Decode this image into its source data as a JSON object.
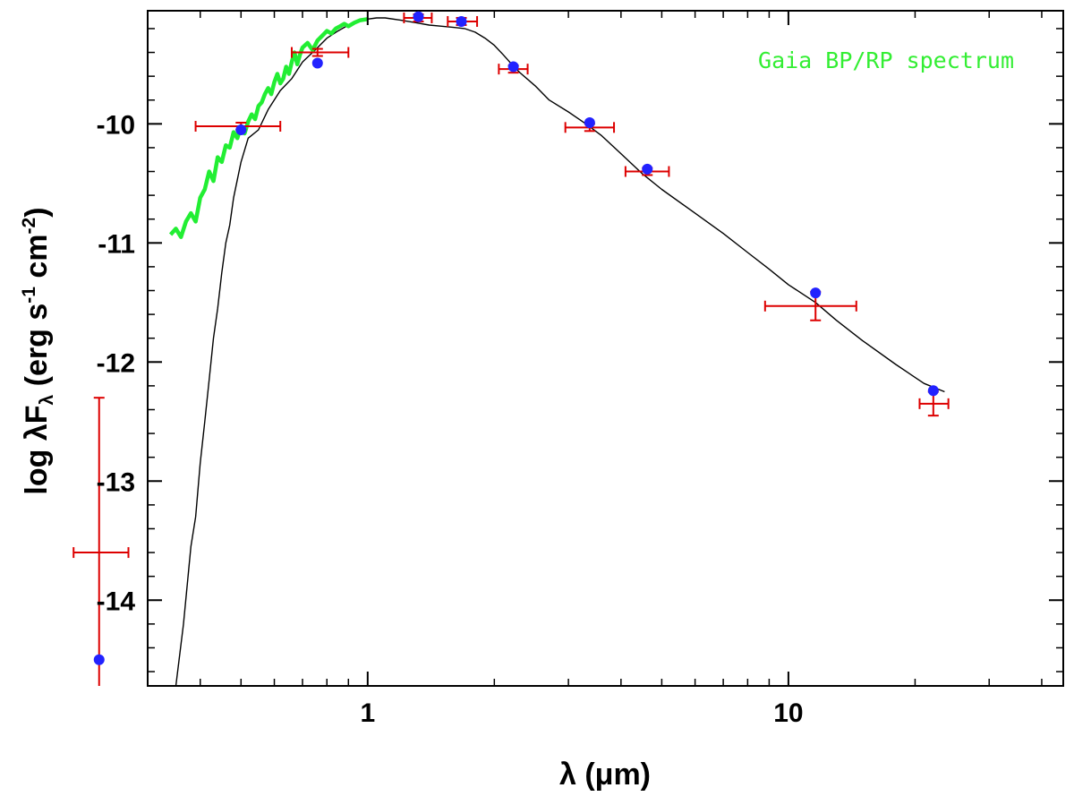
{
  "chart_data": {
    "type": "scatter",
    "title": "",
    "xlabel": "λ (μm)",
    "ylabel": "log λF",
    "ylabel_sub": "λ",
    "ylabel_units_open": " (erg s",
    "ylabel_units_exp1": "-1",
    "ylabel_units_mid": " cm",
    "ylabel_units_exp2": "-2",
    "ylabel_units_close": ")",
    "x_scale": "log",
    "xlim": [
      0.3,
      45
    ],
    "ylim": [
      -14.72,
      -9.05
    ],
    "x_ticks": [
      {
        "value": 1,
        "label": "1"
      },
      {
        "value": 10,
        "label": "10"
      }
    ],
    "y_ticks": [
      {
        "value": -10,
        "label": "-10"
      },
      {
        "value": -11,
        "label": "-11"
      },
      {
        "value": -12,
        "label": "-12"
      },
      {
        "value": -13,
        "label": "-13"
      },
      {
        "value": -14,
        "label": "-14"
      }
    ],
    "grid": false,
    "annotation": {
      "text": "Gaia BP/RP spectrum",
      "color": "#33ee33"
    },
    "model_sed": {
      "color": "#000000",
      "x": [
        0.35,
        0.365,
        0.38,
        0.39,
        0.4,
        0.41,
        0.42,
        0.43,
        0.44,
        0.45,
        0.46,
        0.47,
        0.48,
        0.5,
        0.52,
        0.55,
        0.58,
        0.62,
        0.66,
        0.7,
        0.75,
        0.8,
        0.85,
        0.9,
        0.95,
        1.0,
        1.05,
        1.1,
        1.2,
        1.3,
        1.4,
        1.5,
        1.6,
        1.7,
        1.8,
        1.9,
        2.0,
        2.1,
        2.2,
        2.3,
        2.5,
        2.7,
        3.0,
        3.3,
        3.6,
        4.0,
        4.5,
        5.0,
        6.0,
        7.0,
        8.0,
        9.0,
        10.0,
        11.6,
        13.0,
        15.0,
        18.0,
        21.0,
        23.5
      ],
      "y": [
        -14.72,
        -14.2,
        -13.55,
        -13.3,
        -12.85,
        -12.5,
        -12.15,
        -11.8,
        -11.55,
        -11.25,
        -11.0,
        -10.85,
        -10.62,
        -10.32,
        -10.12,
        -10.05,
        -9.88,
        -9.72,
        -9.62,
        -9.48,
        -9.38,
        -9.28,
        -9.22,
        -9.17,
        -9.14,
        -9.12,
        -9.11,
        -9.11,
        -9.13,
        -9.15,
        -9.17,
        -9.18,
        -9.19,
        -9.2,
        -9.23,
        -9.28,
        -9.34,
        -9.42,
        -9.5,
        -9.57,
        -9.68,
        -9.8,
        -9.9,
        -10.0,
        -10.1,
        -10.25,
        -10.42,
        -10.55,
        -10.75,
        -10.92,
        -11.08,
        -11.22,
        -11.35,
        -11.5,
        -11.65,
        -11.82,
        -12.02,
        -12.18,
        -12.25
      ]
    },
    "gaia_spectrum": {
      "name": "Gaia BP/RP spectrum",
      "color": "#22ee33",
      "x": [
        0.34,
        0.35,
        0.36,
        0.37,
        0.38,
        0.39,
        0.4,
        0.41,
        0.42,
        0.43,
        0.44,
        0.45,
        0.46,
        0.47,
        0.48,
        0.49,
        0.5,
        0.51,
        0.52,
        0.53,
        0.54,
        0.55,
        0.56,
        0.57,
        0.58,
        0.59,
        0.6,
        0.61,
        0.62,
        0.63,
        0.64,
        0.65,
        0.66,
        0.67,
        0.68,
        0.69,
        0.7,
        0.72,
        0.74,
        0.76,
        0.78,
        0.8,
        0.82,
        0.84,
        0.86,
        0.88,
        0.9,
        0.93,
        0.96,
        1.0
      ],
      "y": [
        -10.93,
        -10.88,
        -10.95,
        -10.82,
        -10.75,
        -10.82,
        -10.62,
        -10.55,
        -10.4,
        -10.48,
        -10.28,
        -10.32,
        -10.18,
        -10.2,
        -10.07,
        -10.12,
        -10.02,
        -10.08,
        -9.98,
        -9.92,
        -9.96,
        -9.85,
        -9.82,
        -9.75,
        -9.7,
        -9.75,
        -9.65,
        -9.58,
        -9.66,
        -9.62,
        -9.52,
        -9.58,
        -9.48,
        -9.4,
        -9.5,
        -9.42,
        -9.36,
        -9.32,
        -9.38,
        -9.3,
        -9.26,
        -9.22,
        -9.24,
        -9.2,
        -9.18,
        -9.16,
        -9.18,
        -9.15,
        -9.13,
        -9.12
      ]
    },
    "observed_flux": {
      "color": "#dd0000",
      "points": [
        {
          "x": 0.23,
          "y": -13.6,
          "x_lo": 0.2,
          "x_hi": 0.27,
          "y_lo": -14.72,
          "y_hi": -12.3
        },
        {
          "x": 0.5,
          "y": -10.02,
          "x_lo": 0.39,
          "x_hi": 0.62,
          "y_lo": -10.05,
          "y_hi": -9.99
        },
        {
          "x": 0.76,
          "y": -9.4,
          "x_lo": 0.66,
          "x_hi": 0.9,
          "y_lo": -9.43,
          "y_hi": -9.37
        },
        {
          "x": 1.32,
          "y": -9.11,
          "x_lo": 1.22,
          "x_hi": 1.42,
          "y_lo": -9.14,
          "y_hi": -9.08
        },
        {
          "x": 1.67,
          "y": -9.14,
          "x_lo": 1.55,
          "x_hi": 1.82,
          "y_lo": -9.17,
          "y_hi": -9.11
        },
        {
          "x": 2.22,
          "y": -9.54,
          "x_lo": 2.05,
          "x_hi": 2.4,
          "y_lo": -9.57,
          "y_hi": -9.51
        },
        {
          "x": 3.37,
          "y": -10.03,
          "x_lo": 2.95,
          "x_hi": 3.85,
          "y_lo": -10.06,
          "y_hi": -10.0
        },
        {
          "x": 4.62,
          "y": -10.4,
          "x_lo": 4.1,
          "x_hi": 5.2,
          "y_lo": -10.43,
          "y_hi": -10.37
        },
        {
          "x": 11.6,
          "y": -11.53,
          "x_lo": 8.8,
          "x_hi": 14.5,
          "y_lo": -11.65,
          "y_hi": -11.41
        },
        {
          "x": 22.1,
          "y": -12.35,
          "x_lo": 20.5,
          "x_hi": 24.0,
          "y_lo": -12.45,
          "y_hi": -12.25
        }
      ]
    },
    "synthetic_photometry": {
      "color": "#2222ff",
      "points": [
        {
          "x": 0.23,
          "y": -14.5
        },
        {
          "x": 0.5,
          "y": -10.05
        },
        {
          "x": 0.76,
          "y": -9.49
        },
        {
          "x": 1.32,
          "y": -9.1
        },
        {
          "x": 1.67,
          "y": -9.14
        },
        {
          "x": 2.22,
          "y": -9.52
        },
        {
          "x": 3.37,
          "y": -9.99
        },
        {
          "x": 4.62,
          "y": -10.38
        },
        {
          "x": 11.6,
          "y": -11.42
        },
        {
          "x": 22.1,
          "y": -12.24
        }
      ]
    }
  }
}
